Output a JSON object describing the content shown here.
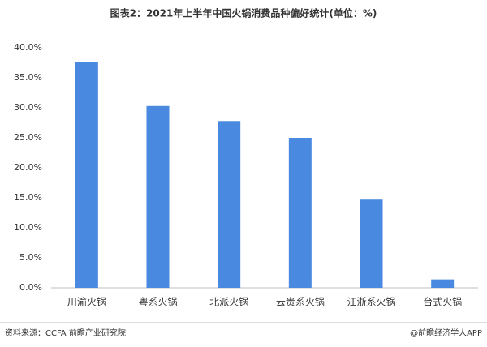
{
  "chart_data": {
    "type": "bar",
    "title": "图表2：2021年上半年中国火锅消费品种偏好统计(单位：%)",
    "categories": [
      "川渝火锅",
      "粤系火锅",
      "北派火锅",
      "云贵系火锅",
      "江浙系火锅",
      "台式火锅"
    ],
    "values": [
      37.7,
      30.3,
      27.8,
      25.0,
      14.7,
      1.4
    ],
    "color": "#4a89e0",
    "ylim": [
      0,
      40
    ],
    "yticks": [
      {
        "value": 0,
        "label": "0.0%"
      },
      {
        "value": 5,
        "label": "5.0%"
      },
      {
        "value": 10,
        "label": "10.0%"
      },
      {
        "value": 15,
        "label": "15.0%"
      },
      {
        "value": 20,
        "label": "20.0%"
      },
      {
        "value": 25,
        "label": "25.0%"
      },
      {
        "value": 30,
        "label": "30.0%"
      },
      {
        "value": 35,
        "label": "35.0%"
      },
      {
        "value": 40,
        "label": "40.0%"
      }
    ],
    "grid": false,
    "source": "资料来源：CCFA 前瞻产业研究院",
    "credit": "@前瞻经济学人APP"
  }
}
